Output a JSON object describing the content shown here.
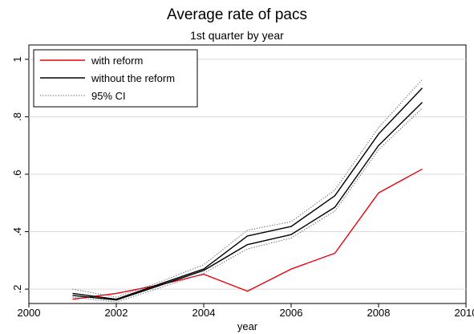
{
  "chart_data": {
    "type": "line",
    "title": "Average rate of pacs",
    "subtitle": "1st quarter by year",
    "xlabel": "year",
    "ylabel": "",
    "xlim": [
      2000,
      2010
    ],
    "ylim": [
      0.15,
      1.05
    ],
    "xticks": [
      2000,
      2002,
      2004,
      2006,
      2008,
      2010
    ],
    "xtick_labels": [
      "2000",
      "2002",
      "2004",
      "2006",
      "2008",
      "2010"
    ],
    "yticks": [
      0.2,
      0.4,
      0.6,
      0.8,
      1.0
    ],
    "ytick_labels": [
      ".2",
      ".4",
      ".6",
      ".8",
      "1"
    ],
    "grid": true,
    "legend_position": "top-left",
    "x": [
      2001,
      2002,
      2003,
      2004,
      2005,
      2006,
      2007,
      2008,
      2009
    ],
    "series": [
      {
        "name": "with reform",
        "color": "#e8000b",
        "style": "solid",
        "values": [
          0.165,
          0.185,
          0.215,
          0.252,
          0.193,
          0.27,
          0.325,
          0.535,
          0.618
        ]
      },
      {
        "name": "without the reform",
        "color": "#000000",
        "style": "solid",
        "values": [
          0.178,
          0.162,
          0.213,
          0.265,
          0.355,
          0.39,
          0.485,
          0.7,
          0.85
        ]
      },
      {
        "name": "",
        "color": "#000000",
        "style": "solid",
        "values": [
          0.185,
          0.165,
          0.218,
          0.27,
          0.385,
          0.418,
          0.525,
          0.74,
          0.9
        ]
      },
      {
        "name": "95% CI",
        "color": "#555555",
        "style": "dotted",
        "values": [
          0.2,
          0.172,
          0.225,
          0.285,
          0.405,
          0.435,
          0.545,
          0.762,
          0.93
        ]
      },
      {
        "name": "",
        "color": "#555555",
        "style": "dotted",
        "values": [
          0.172,
          0.155,
          0.205,
          0.255,
          0.34,
          0.378,
          0.472,
          0.685,
          0.83
        ]
      }
    ]
  }
}
